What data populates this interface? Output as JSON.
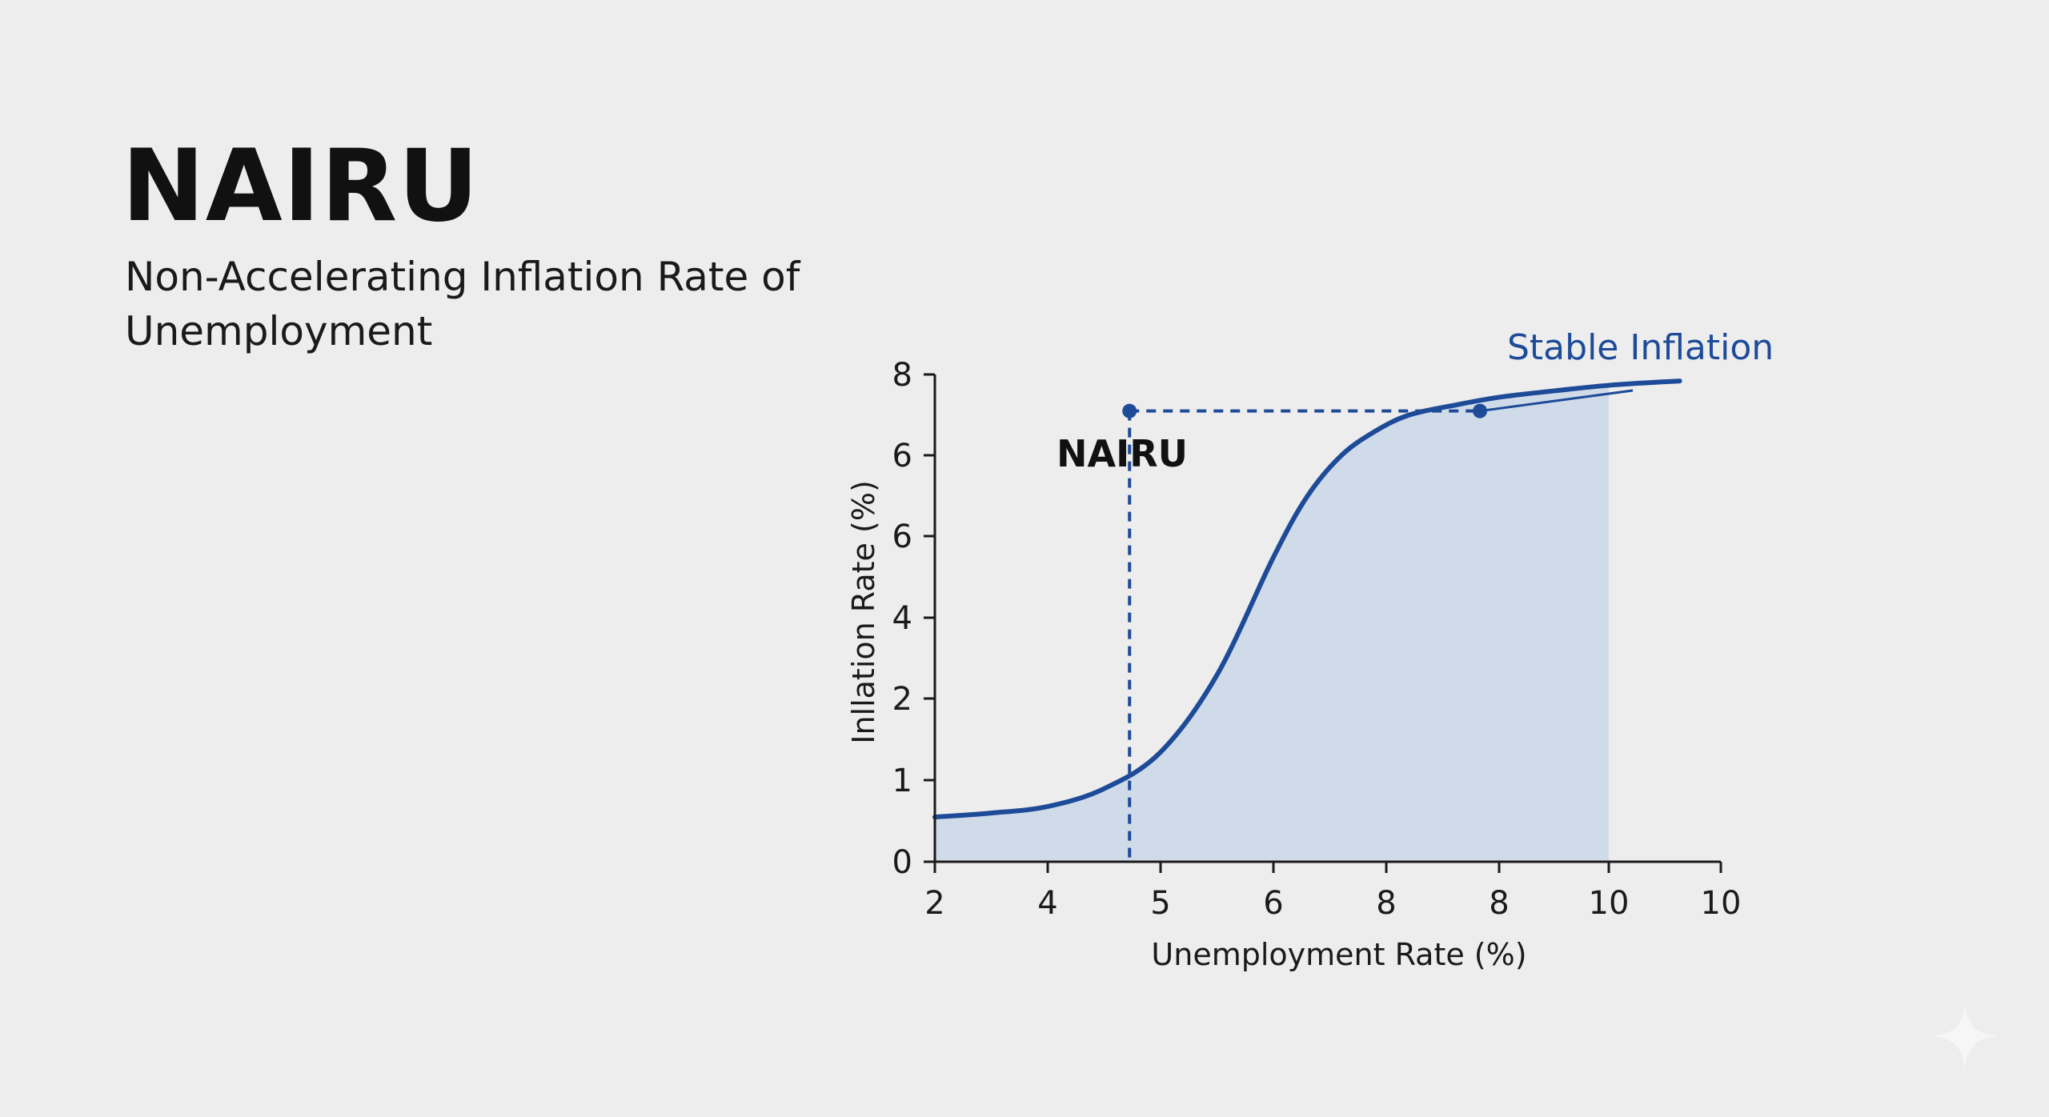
{
  "header": {
    "title": "NAIRU",
    "subtitle": "Non-Accelerating Inflation Rate of Unemployment"
  },
  "colors": {
    "curve": "#1e4b98",
    "fill": "#d0dbe9",
    "axis": "#1a1a1a",
    "annotation": "#1e4b98"
  },
  "chart_data": {
    "type": "area",
    "title": "",
    "xlabel": "Unemployment Rate (%)",
    "ylabel": "Inllation Rate (%)",
    "x_tick_labels": [
      "2",
      "4",
      "5",
      "6",
      "8",
      "8",
      "10",
      "10"
    ],
    "y_tick_labels": [
      "0",
      "1",
      "2",
      "4",
      "6",
      "6",
      "8"
    ],
    "grid": false,
    "legend": "none",
    "series": [
      {
        "x": [
          0,
          0.5,
          1,
          1.5,
          2,
          2.5,
          3,
          3.3,
          3.6,
          3.9,
          4.2,
          4.6,
          5,
          5.5,
          6,
          6.6
        ],
        "values": [
          0.55,
          0.6,
          0.68,
          0.9,
          1.35,
          2.3,
          3.75,
          4.5,
          5.0,
          5.3,
          5.5,
          5.62,
          5.72,
          5.8,
          5.87,
          5.92
        ]
      }
    ],
    "annotations": {
      "nairu_label": "NAIRU",
      "nairu_point": {
        "x": 1.725,
        "y": 5.55
      },
      "stable_label": "Stable Inflation",
      "stable_point": {
        "x": 4.83,
        "y": 5.55
      }
    }
  }
}
